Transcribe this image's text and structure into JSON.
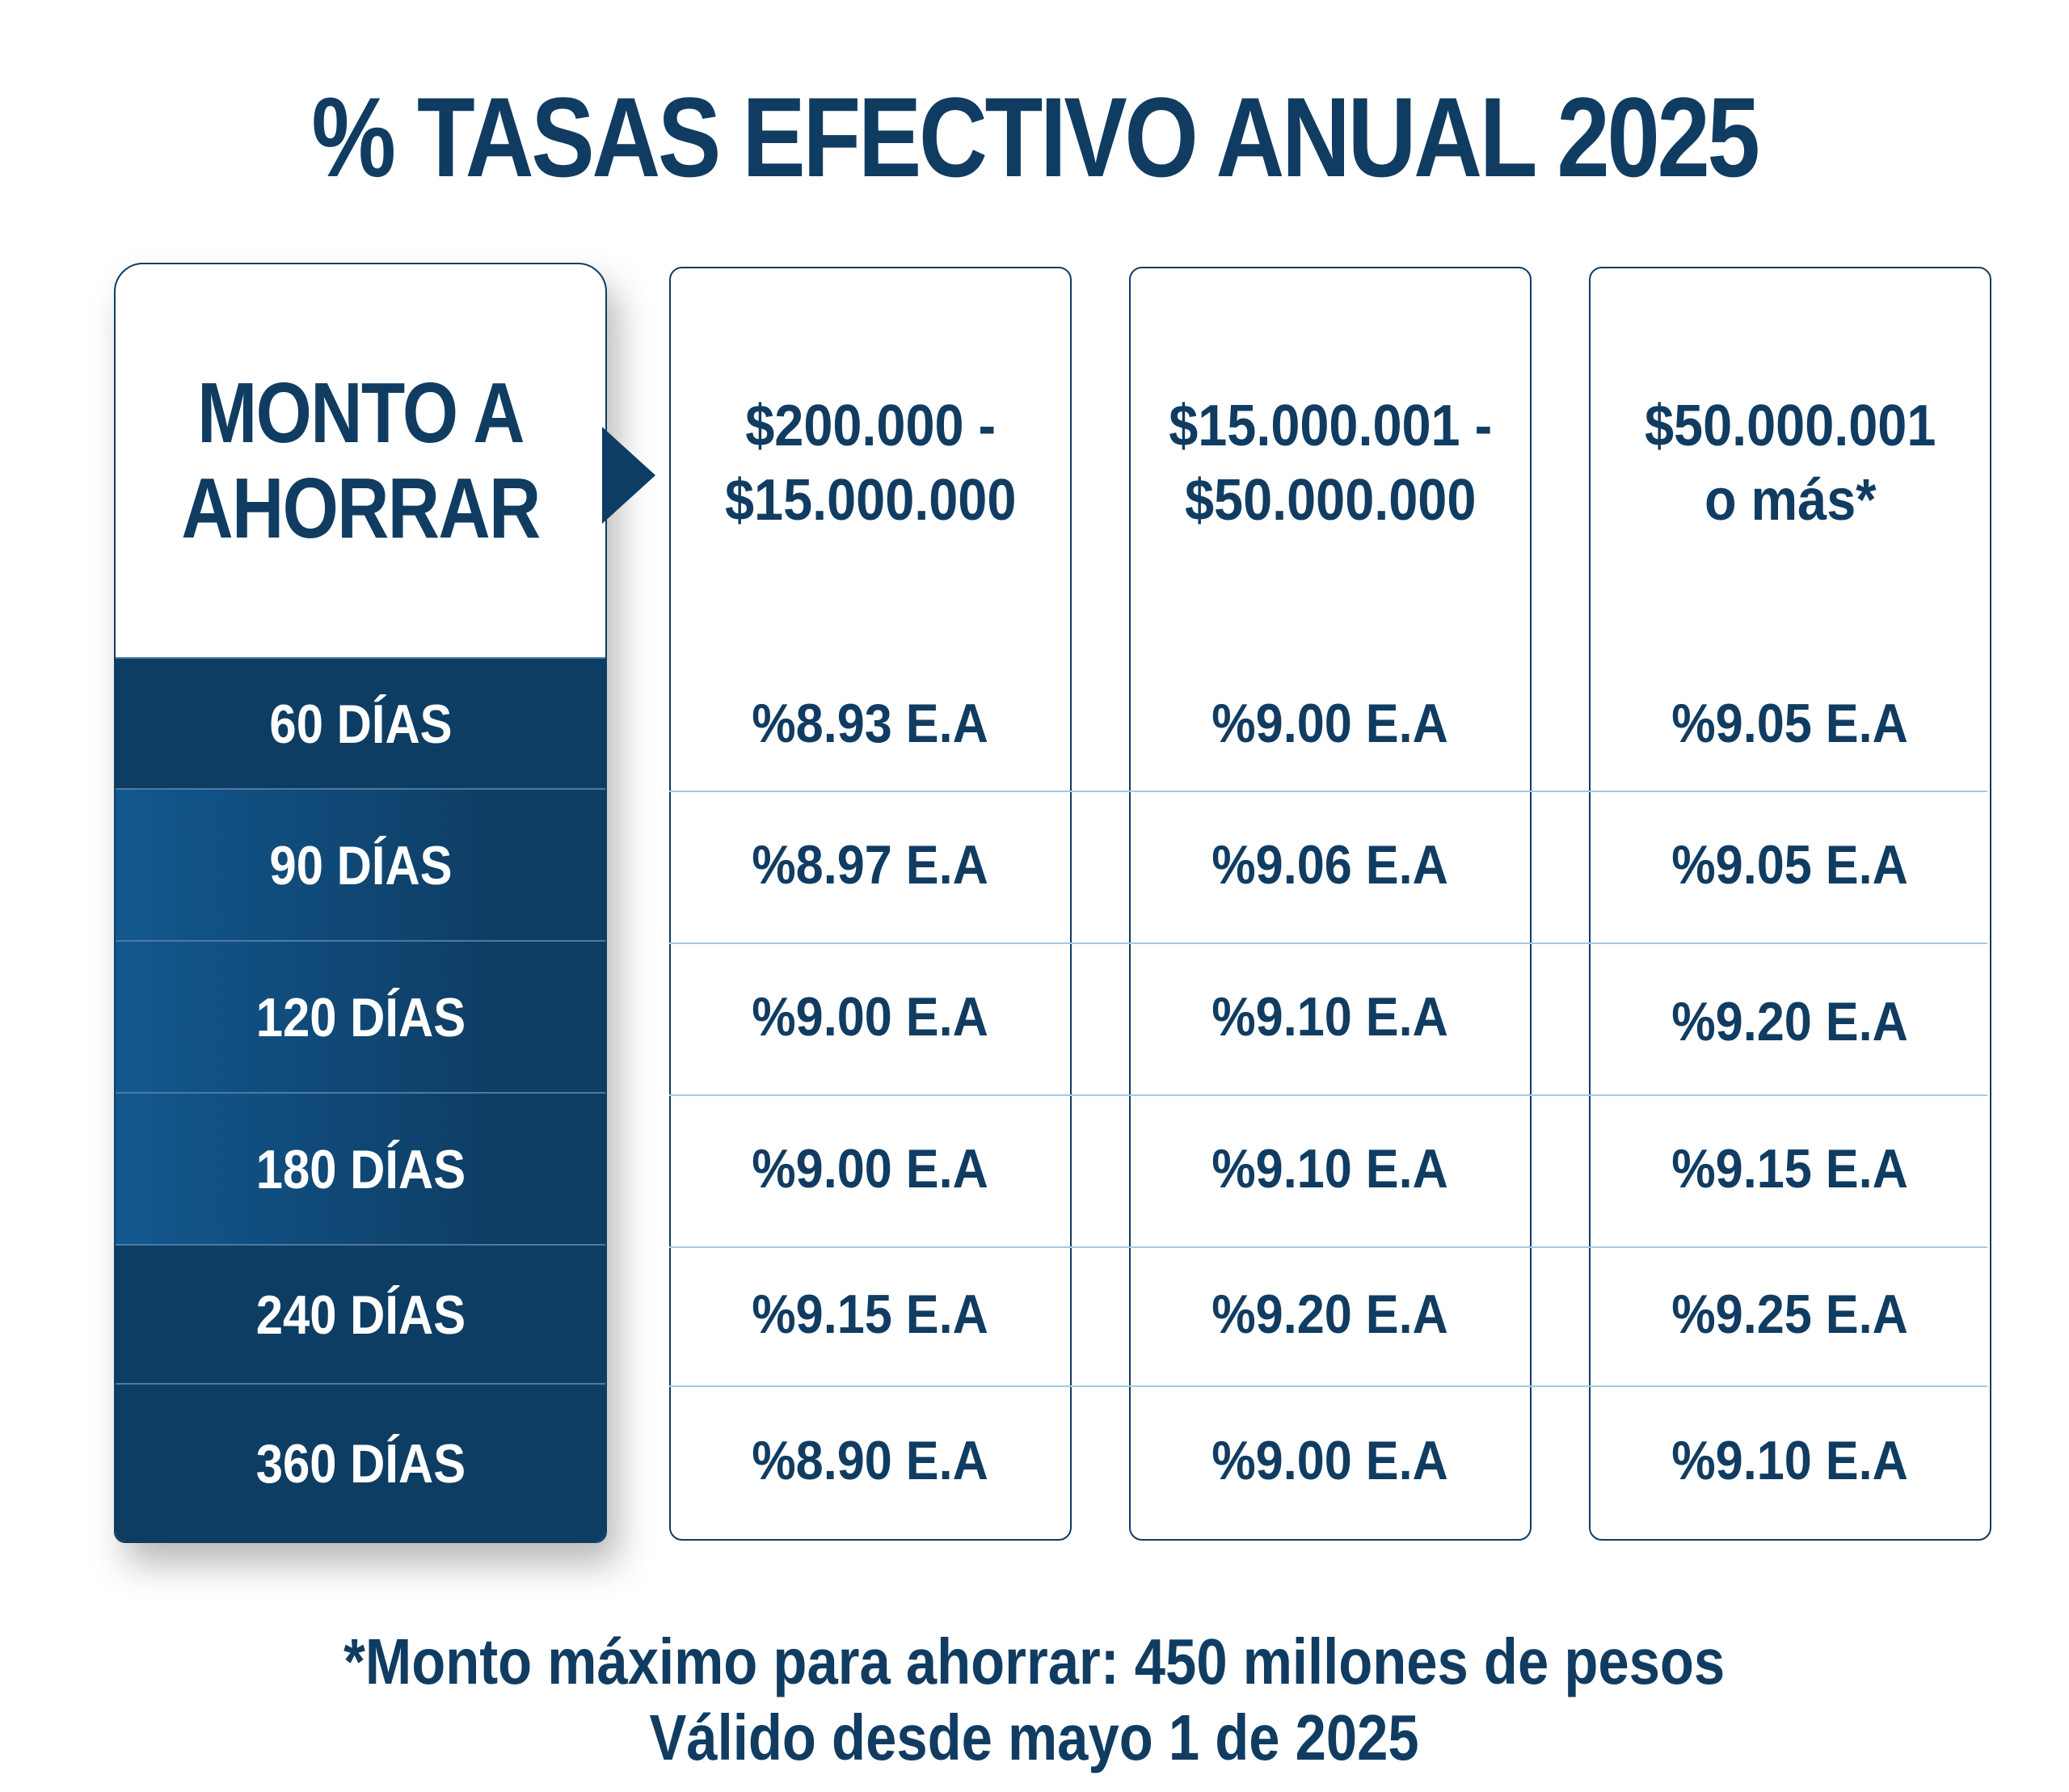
{
  "title": "% TASAS EFECTIVO ANUAL 2025",
  "row_header": {
    "line1": "MONTO A",
    "line2": "AHORRAR"
  },
  "terms": [
    "60 DÍAS",
    "90 DÍAS",
    "120 DÍAS",
    "180 DÍAS",
    "240 DÍAS",
    "360 DÍAS"
  ],
  "columns": [
    {
      "header_line1": "$200.000 -",
      "header_line2": "$15.000.000",
      "rates": [
        "%8.93 E.A",
        "%8.97 E.A",
        "%9.00 E.A",
        "%9.00 E.A",
        "%9.15 E.A",
        "%8.90 E.A"
      ]
    },
    {
      "header_line1": "$15.000.001 -",
      "header_line2": "$50.000.000",
      "rates": [
        "%9.00 E.A",
        "%9.06 E.A",
        "%9.10 E.A",
        "%9.10 E.A",
        "%9.20 E.A",
        "%9.00 E.A"
      ]
    },
    {
      "header_line1": "$50.000.001",
      "header_line2": "o más*",
      "rates": [
        "%9.05 E.A",
        "%9.05 E.A",
        "%9.20 E.A",
        "%9.15 E.A",
        "%9.25 E.A",
        "%9.10 E.A"
      ]
    }
  ],
  "footer": {
    "line1": "*Monto máximo para ahorrar: 450 millones de pesos",
    "line2": "Válido desde mayo 1 de 2025"
  },
  "colors": {
    "primary": "#113c62",
    "row_dark": "#0e3d64",
    "row_gradient_light": "#12588f",
    "divider": "#9fcde0"
  }
}
